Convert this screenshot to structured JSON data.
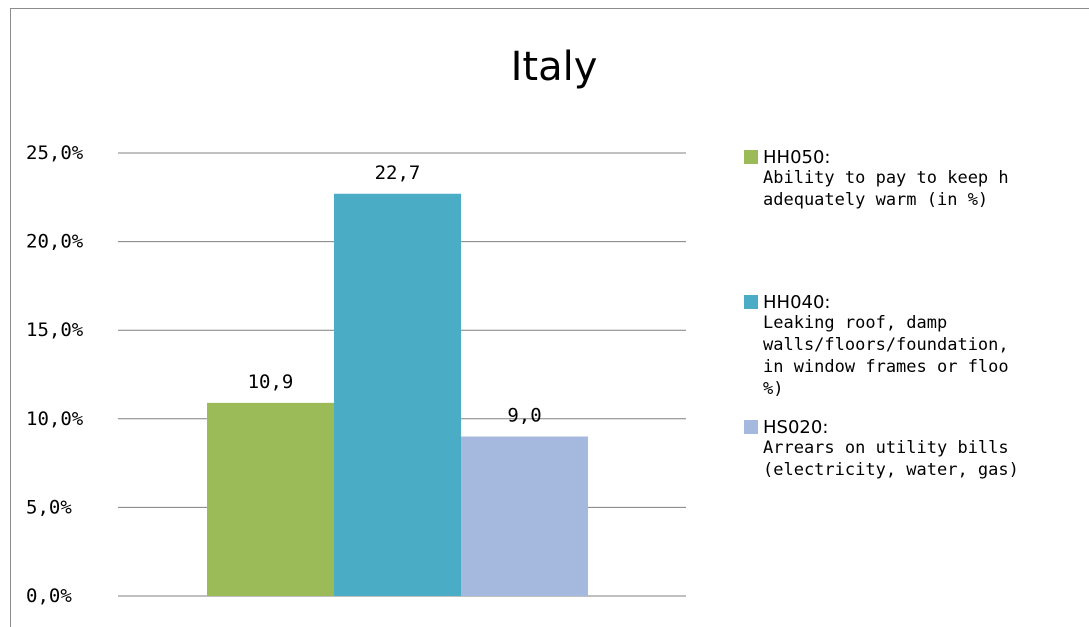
{
  "chart_data": {
    "type": "bar",
    "title": "Italy",
    "xlabel": "",
    "ylabel": "",
    "ylim": [
      0,
      25
    ],
    "yticks": [
      "0,0%",
      "5,0%",
      "10,0%",
      "15,0%",
      "20,0%",
      "25,0%"
    ],
    "grid": true,
    "legend_position": "right",
    "series": [
      {
        "name": "HH050:",
        "description": "Ability to pay to keep h\nadequately warm (in %)",
        "value": 10.9,
        "data_label": "10,9",
        "color": "#9bbb59"
      },
      {
        "name": "HH040:",
        "description": "Leaking roof, damp\nwalls/floors/foundation,\nin window frames or floo\n%)",
        "value": 22.7,
        "data_label": "22,7",
        "color": "#4bacc6"
      },
      {
        "name": "HS020:",
        "description": "Arrears on utility bills\n(electricity, water, gas)",
        "value": 9.0,
        "data_label": "9,0",
        "color": "#a5b8dd"
      }
    ]
  }
}
